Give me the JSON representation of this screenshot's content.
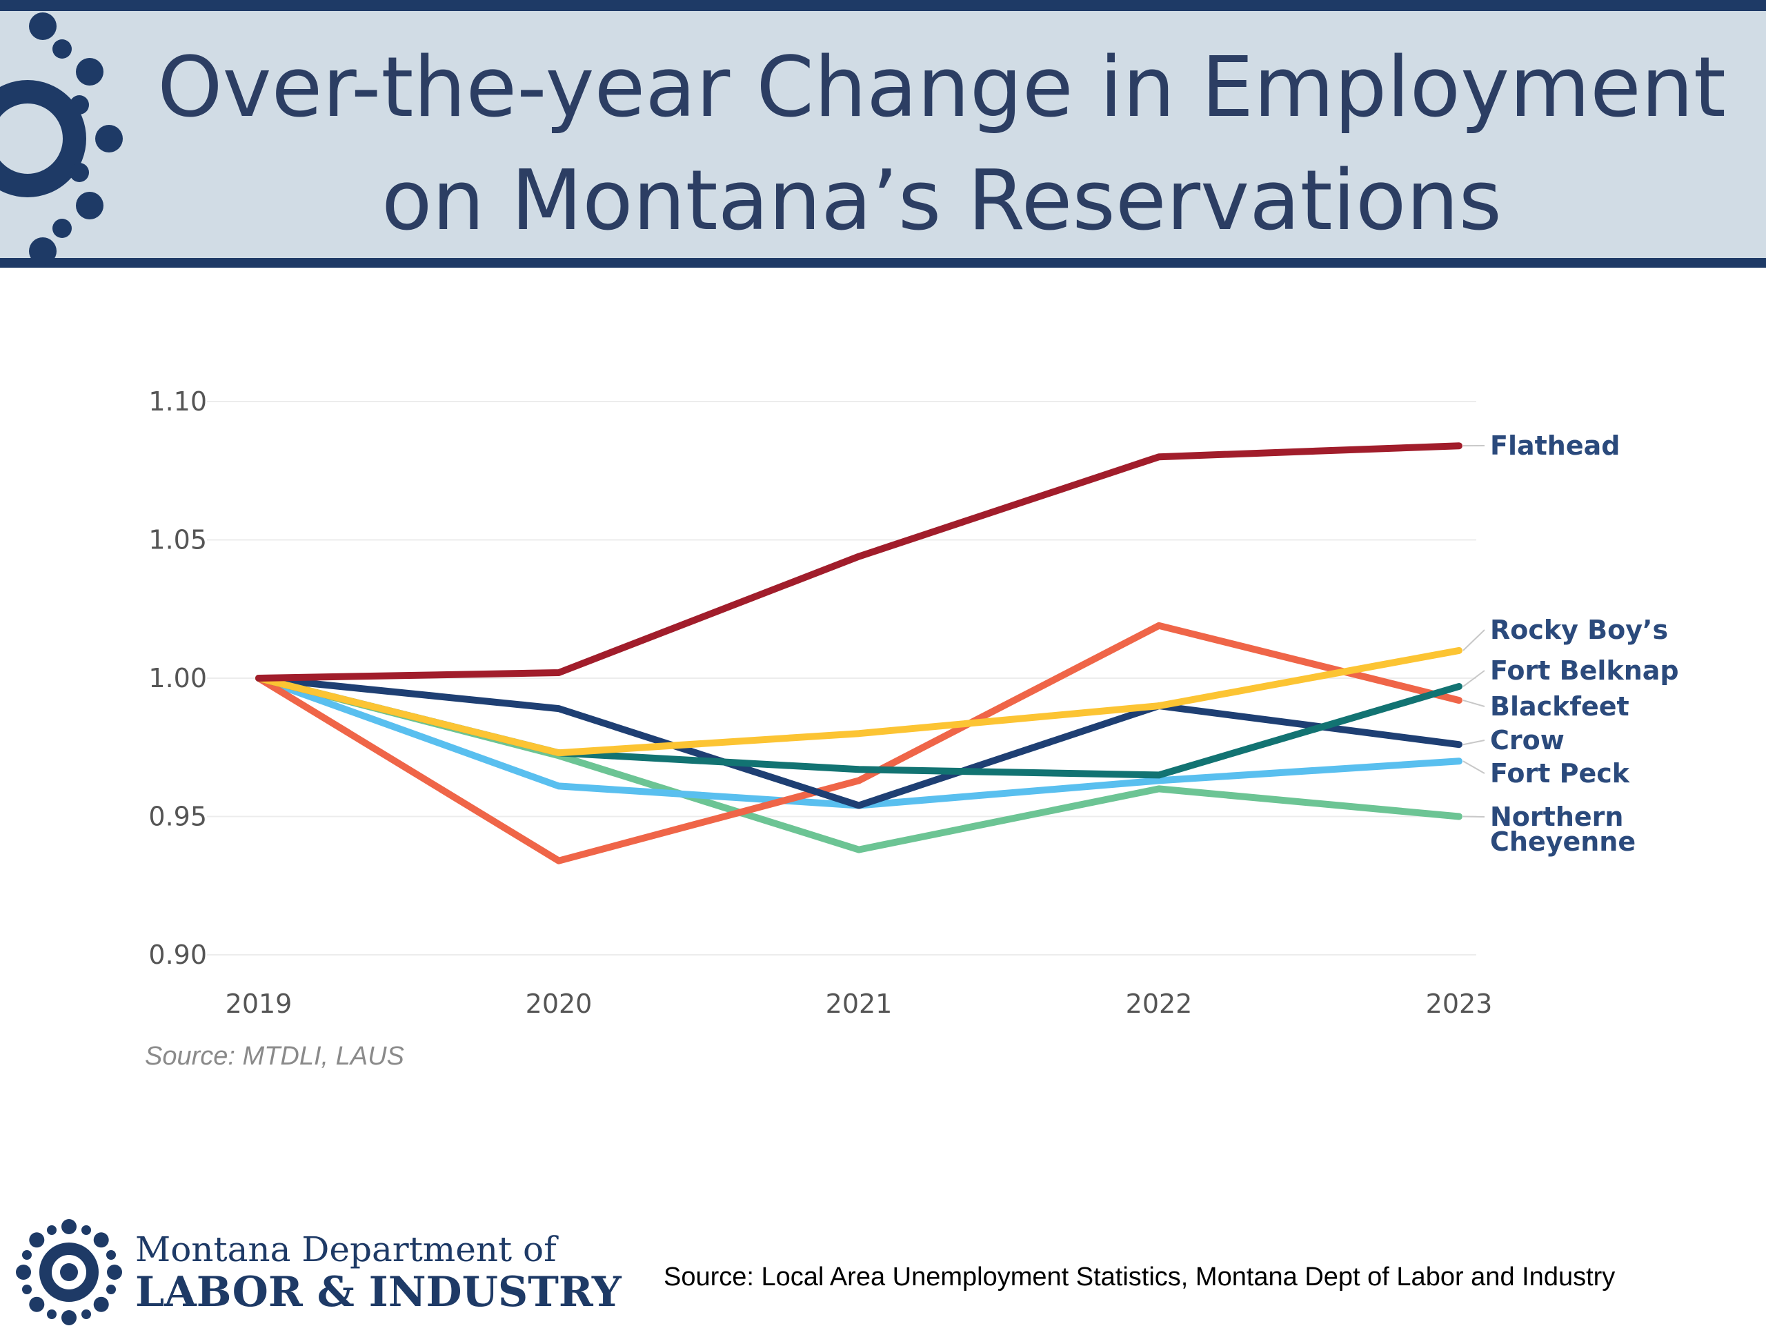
{
  "header": {
    "title_line1": "Over-the-year Change in Employment",
    "title_line2": "on Montana’s Reservations",
    "logo_icon": "gear-people-logo-icon"
  },
  "chart_data": {
    "type": "line",
    "title": "",
    "xlabel": "",
    "ylabel": "",
    "x": [
      "2019",
      "2020",
      "2021",
      "2022",
      "2023"
    ],
    "ylim": [
      0.9,
      1.1
    ],
    "y_ticks": [
      "0.90",
      "0.95",
      "1.00",
      "1.05",
      "1.10"
    ],
    "grid": true,
    "legend": "direct labels at right end of lines",
    "series": [
      {
        "name": "Flathead",
        "color": "#a11d2b",
        "values": [
          1.0,
          1.002,
          1.044,
          1.08,
          1.084
        ]
      },
      {
        "name": "Rocky Boy’s",
        "color": "#fcc433",
        "values": [
          1.0,
          0.973,
          0.98,
          0.99,
          1.01
        ]
      },
      {
        "name": "Fort Belknap",
        "color": "#127372",
        "values": [
          1.0,
          0.973,
          0.967,
          0.965,
          0.997
        ]
      },
      {
        "name": "Blackfeet",
        "color": "#ef6548",
        "values": [
          1.0,
          0.934,
          0.963,
          1.019,
          0.992
        ]
      },
      {
        "name": "Crow",
        "color": "#1e3f73",
        "values": [
          1.0,
          0.989,
          0.954,
          0.99,
          0.976
        ]
      },
      {
        "name": "Fort Peck",
        "color": "#59bfef",
        "values": [
          1.0,
          0.961,
          0.954,
          0.963,
          0.97
        ]
      },
      {
        "name": "Northern Cheyenne",
        "label_lines": [
          "Northern",
          "Cheyenne"
        ],
        "color": "#6cc494",
        "values": [
          1.0,
          0.972,
          0.938,
          0.96,
          0.95
        ]
      }
    ],
    "source_note": "Source: MTDLI, LAUS"
  },
  "footer": {
    "org_line1": "Montana Department of",
    "org_line2": "LABOR & INDUSTRY",
    "source": "Source:  Local Area Unemployment Statistics, Montana Dept of Labor and Industry",
    "logo_icon": "gear-people-logo-icon"
  }
}
